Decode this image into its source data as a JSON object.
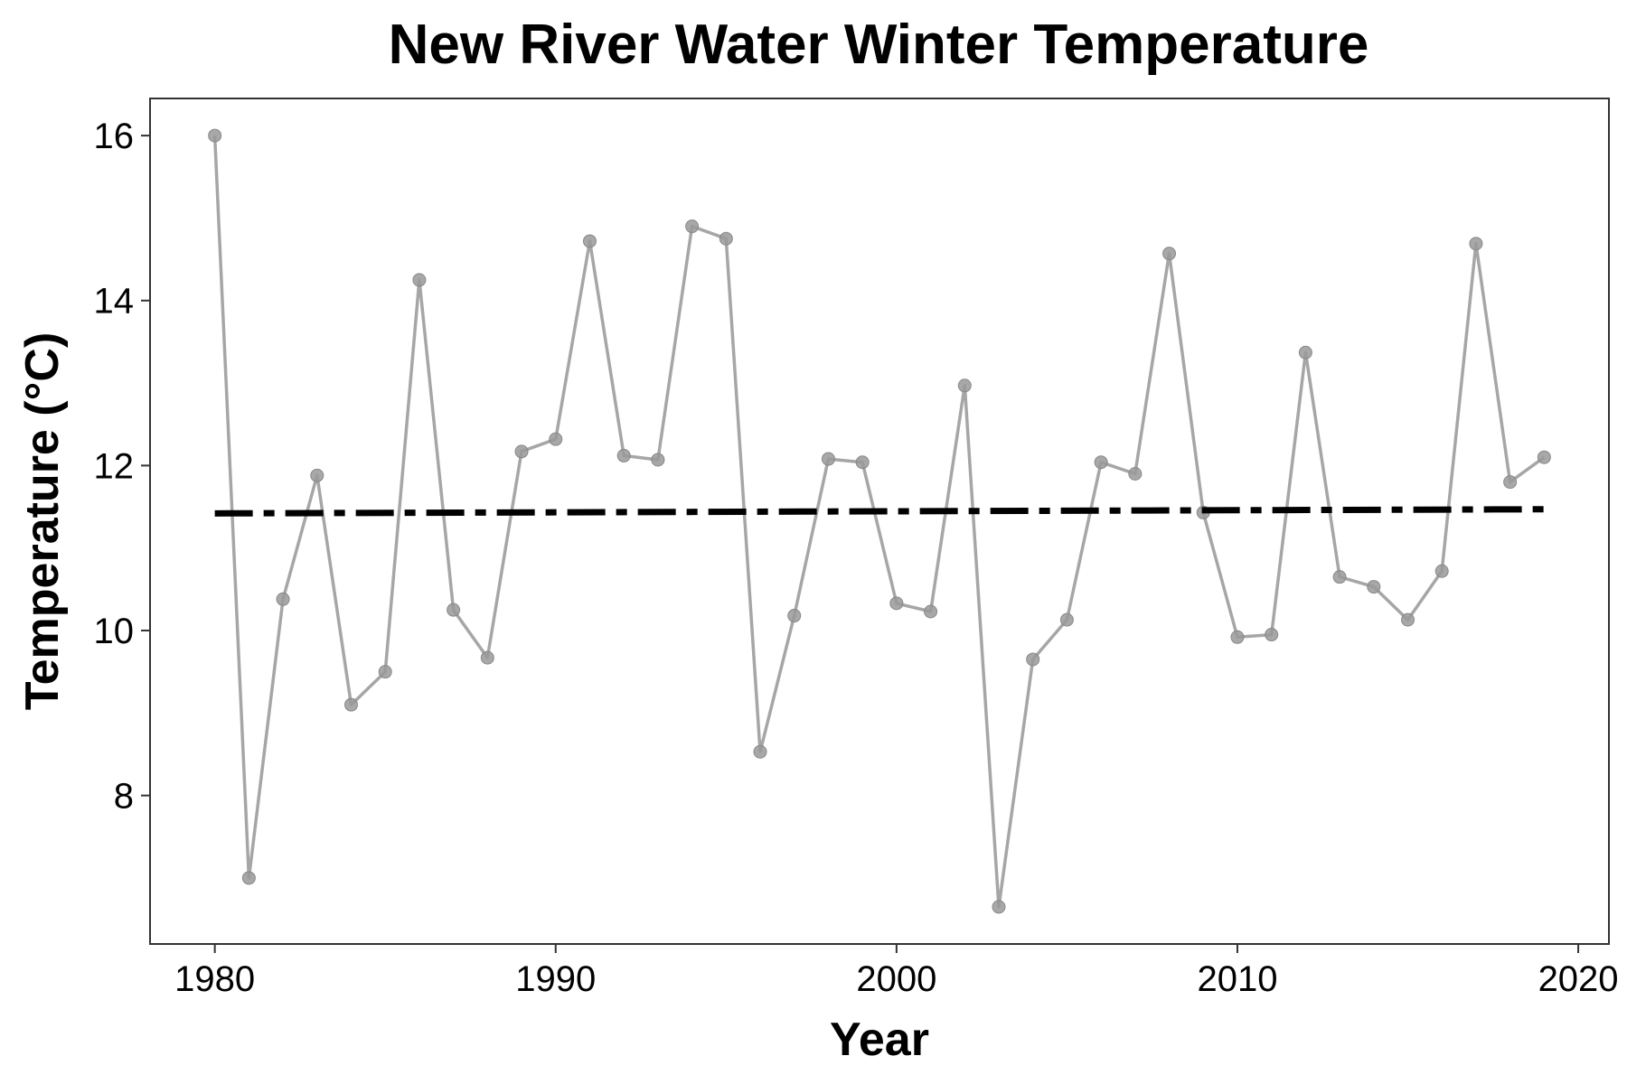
{
  "chart_data": {
    "type": "line",
    "title": "New River Water Winter Temperature",
    "xlabel": "Year",
    "ylabel": "Temperature (°C)",
    "xlim": [
      1978.1,
      2020.9
    ],
    "ylim": [
      6.2,
      16.45
    ],
    "x_ticks": [
      1980,
      1990,
      2000,
      2010,
      2020
    ],
    "y_ticks": [
      8,
      10,
      12,
      14,
      16
    ],
    "grid": false,
    "legend": "none",
    "series": [
      {
        "style": "line+points",
        "color": "#a6a6a6",
        "x": [
          1980,
          1981,
          1982,
          1983,
          1984,
          1985,
          1986,
          1987,
          1988,
          1989,
          1990,
          1991,
          1992,
          1993,
          1994,
          1995,
          1996,
          1997,
          1998,
          1999,
          2000,
          2001,
          2002,
          2003,
          2004,
          2005,
          2006,
          2007,
          2008,
          2009,
          2010,
          2011,
          2012,
          2013,
          2014,
          2015,
          2016,
          2017,
          2018,
          2019
        ],
        "y": [
          16.0,
          7.0,
          10.38,
          11.88,
          9.1,
          9.5,
          14.25,
          10.25,
          9.67,
          12.17,
          12.32,
          14.72,
          12.12,
          12.07,
          14.9,
          14.75,
          8.53,
          10.18,
          12.08,
          12.04,
          10.33,
          10.23,
          12.97,
          6.65,
          9.65,
          10.13,
          12.04,
          11.9,
          14.57,
          11.43,
          9.92,
          9.95,
          13.37,
          10.65,
          10.53,
          10.13,
          10.72,
          14.69,
          11.8,
          12.1
        ]
      },
      {
        "style": "trend-dashdot",
        "color": "#000000",
        "x": [
          1980,
          2019
        ],
        "y": [
          11.42,
          11.47
        ]
      }
    ]
  }
}
